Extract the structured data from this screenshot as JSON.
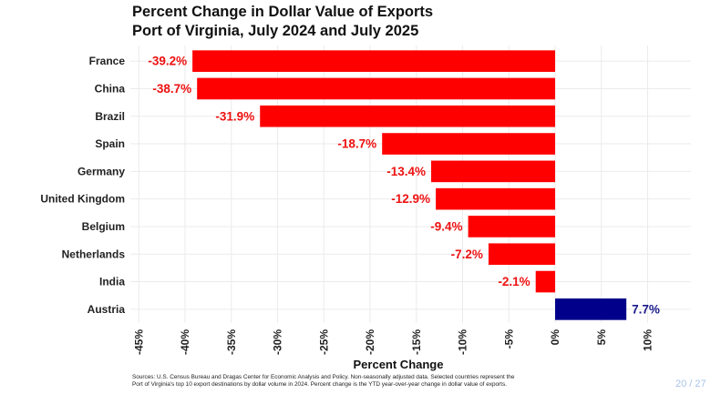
{
  "title": {
    "line1": "Percent Change in Dollar Value of Exports",
    "line2": "Port of Virginia, July 2024 and July 2025"
  },
  "footer": {
    "source_line1": "Sources: U.S. Census Bureau and Dragas Center for Economic Analysis and Policy. Non-seasonally adjusted data. Selected countries represent the",
    "source_line2": "Port of Virginia's top 10 export destinations by dollar volume in 2024. Percent change is the YTD year-over-year change in dollar value of exports.",
    "page_number": "20 / 27"
  },
  "chart_data": {
    "type": "bar",
    "orientation": "horizontal",
    "title": "Percent Change in Dollar Value of Exports\nPort of Virginia, July 2024 and July 2025",
    "xlabel": "Percent Change",
    "ylabel": "",
    "categories": [
      "France",
      "China",
      "Brazil",
      "Spain",
      "Germany",
      "United Kingdom",
      "Belgium",
      "Netherlands",
      "India",
      "Austria"
    ],
    "values": [
      -39.2,
      -38.7,
      -31.9,
      -18.7,
      -13.4,
      -12.9,
      -9.4,
      -7.2,
      -2.1,
      7.7
    ],
    "data_labels": [
      "-39.2%",
      "-38.7%",
      "-31.9%",
      "-18.7%",
      "-13.4%",
      "-12.9%",
      "-9.4%",
      "-7.2%",
      "-2.1%",
      "7.7%"
    ],
    "xlim": [
      -46.3,
      14.3
    ],
    "xticks": [
      -45,
      -40,
      -35,
      -30,
      -25,
      -20,
      -15,
      -10,
      -5,
      0,
      5,
      10
    ],
    "xtick_labels": [
      "-45%",
      "-40%",
      "-35%",
      "-30%",
      "-25%",
      "-20%",
      "-15%",
      "-10%",
      "-5%",
      "0%",
      "5%",
      "10%"
    ],
    "grid": true,
    "legend": "none",
    "colors": {
      "negative": "#ff0000",
      "positive": "#00008b",
      "negative_label": "#ee1111",
      "positive_label": "#1a1a8c"
    }
  }
}
